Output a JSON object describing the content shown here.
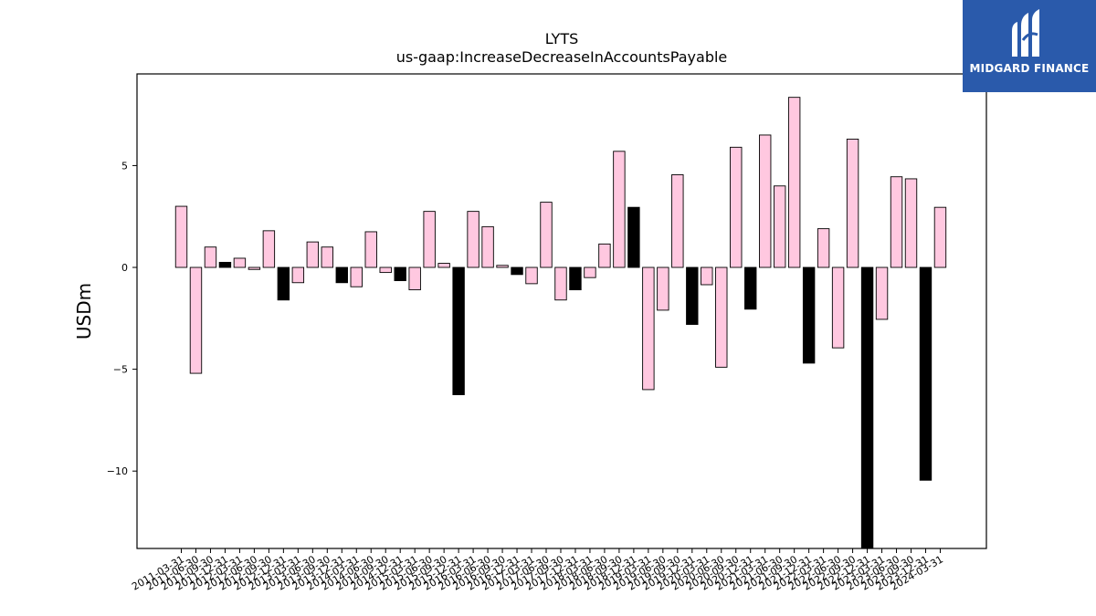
{
  "chart_data": {
    "type": "bar",
    "title": "LYTS",
    "subtitle": "us-gaap:IncreaseDecreaseInAccountsPayable",
    "ylabel": "USDm",
    "xlabel": "",
    "ylim": [
      -13.8,
      9.5
    ],
    "yticks": [
      5,
      0,
      -5,
      -10
    ],
    "ytick_labels": [
      "5",
      "0",
      "−5",
      "−10"
    ],
    "categories": [
      "2011-03-31",
      "2011-06-30",
      "2011-09-30",
      "2011-12-31",
      "2012-03-31",
      "2012-06-30",
      "2012-09-30",
      "2012-12-31",
      "2013-03-31",
      "2013-06-30",
      "2013-09-30",
      "2013-12-31",
      "2014-03-31",
      "2014-06-30",
      "2014-09-30",
      "2014-12-31",
      "2015-03-31",
      "2015-06-30",
      "2015-09-30",
      "2015-12-31",
      "2016-03-31",
      "2016-06-30",
      "2016-09-30",
      "2016-12-31",
      "2017-03-31",
      "2017-06-30",
      "2017-09-30",
      "2017-12-31",
      "2018-03-31",
      "2018-06-30",
      "2018-09-30",
      "2018-12-31",
      "2019-03-31",
      "2019-06-30",
      "2019-09-30",
      "2019-12-31",
      "2020-03-31",
      "2020-06-30",
      "2020-09-30",
      "2020-12-31",
      "2021-03-31",
      "2021-06-30",
      "2021-09-30",
      "2021-12-31",
      "2022-03-31",
      "2022-06-30",
      "2022-09-30",
      "2022-12-31",
      "2023-03-31",
      "2023-06-30",
      "2023-09-30",
      "2023-12-31",
      "2024-03-31"
    ],
    "values": [
      3.0,
      -5.2,
      1.0,
      0.25,
      0.45,
      -0.1,
      1.8,
      -1.6,
      -0.75,
      1.25,
      1.0,
      -0.75,
      -0.95,
      1.75,
      -0.25,
      -0.65,
      -1.1,
      2.75,
      0.2,
      -6.25,
      2.75,
      2.0,
      0.1,
      -0.35,
      -0.8,
      3.2,
      -1.6,
      -1.1,
      -0.5,
      1.15,
      5.7,
      2.95,
      -6.0,
      -2.1,
      4.55,
      -2.8,
      -0.85,
      -4.9,
      5.9,
      -2.05,
      6.5,
      4.0,
      8.35,
      -4.7,
      1.9,
      -3.95,
      6.3,
      -14.0,
      -2.55,
      4.45,
      4.35,
      -10.45,
      2.95
    ],
    "colors": [
      "pink",
      "pink",
      "pink",
      "black",
      "pink",
      "pink",
      "pink",
      "black",
      "pink",
      "pink",
      "pink",
      "black",
      "pink",
      "pink",
      "pink",
      "black",
      "pink",
      "pink",
      "pink",
      "black",
      "pink",
      "pink",
      "pink",
      "black",
      "pink",
      "pink",
      "pink",
      "black",
      "pink",
      "pink",
      "pink",
      "black",
      "pink",
      "pink",
      "pink",
      "black",
      "pink",
      "pink",
      "pink",
      "black",
      "pink",
      "pink",
      "pink",
      "black",
      "pink",
      "pink",
      "pink",
      "black",
      "pink",
      "pink",
      "pink",
      "black",
      "pink"
    ],
    "palette": {
      "pink": "#ffc8e0",
      "black": "#000000",
      "edge": "#000000"
    },
    "grid": false,
    "legend": "none"
  },
  "logo": {
    "text": "MIDGARD FINANCE",
    "background": "#2a5aab"
  }
}
